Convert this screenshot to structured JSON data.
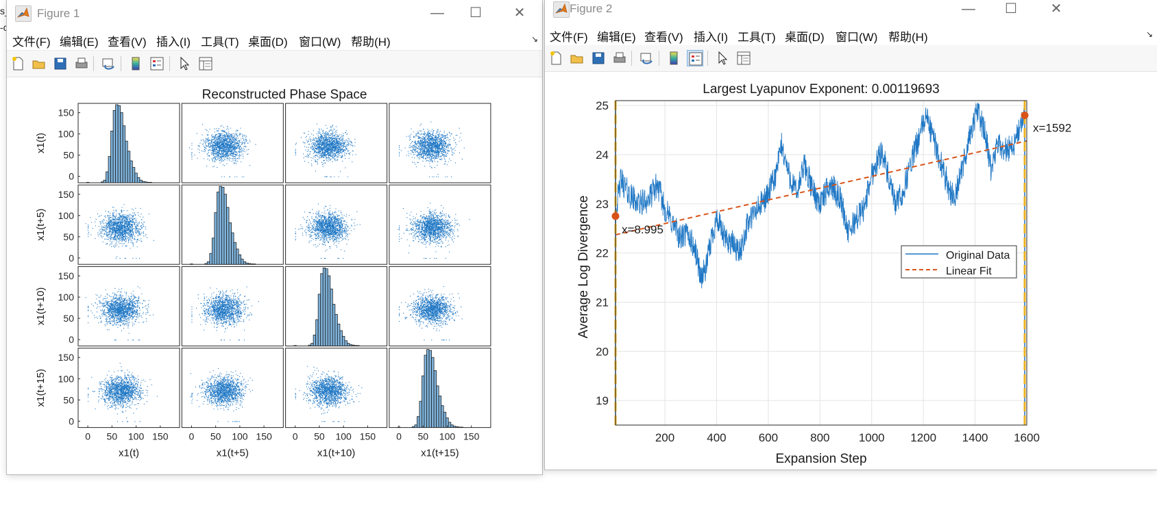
{
  "desktop": {
    "left_text_1": "s_",
    "left_text_2": "-c"
  },
  "figure1": {
    "title": "Figure 1",
    "menus": [
      "文件(F)",
      "编辑(E)",
      "查看(V)",
      "插入(I)",
      "工具(T)",
      "桌面(D)",
      "窗口(W)",
      "帮助(H)"
    ],
    "toolbar_icons": [
      "new-figure-icon",
      "open-file-icon",
      "save-icon",
      "print-icon",
      "link-plot-icon",
      "colorbar-icon",
      "legend-icon",
      "edit-plot-icon",
      "property-inspector-icon"
    ],
    "chart_data": {
      "type": "scatter-matrix",
      "title": "Reconstructed Phase Space",
      "variables": [
        "x1(t)",
        "x1(t+5)",
        "x1(t+10)",
        "x1(t+15)"
      ],
      "xlabels": [
        "x1(t)",
        "x1(t+5)",
        "x1(t+10)",
        "x1(t+15)"
      ],
      "ylabels": [
        "x1(t)",
        "x1(t+5)",
        "x1(t+10)",
        "x1(t+15)"
      ],
      "xticks": [
        "0",
        "50",
        "100",
        "150"
      ],
      "yticks": [
        "0",
        "50",
        "100",
        "150"
      ],
      "xlim": [
        -20,
        190
      ],
      "ylim": [
        -15,
        172
      ],
      "histogram": {
        "bin_centers": [
          0,
          25,
          30,
          35,
          40,
          45,
          50,
          55,
          60,
          65,
          70,
          75,
          80,
          85,
          90,
          95,
          100,
          105,
          110,
          115,
          120,
          125,
          130,
          140
        ],
        "counts": [
          1,
          0,
          2,
          6,
          25,
          60,
          118,
          165,
          178,
          176,
          160,
          130,
          95,
          72,
          50,
          35,
          22,
          12,
          6,
          3,
          2,
          1,
          1,
          0
        ]
      },
      "scatter": {
        "center": [
          68,
          72
        ],
        "spread": [
          20,
          17
        ],
        "n_points": 1400
      },
      "colors": {
        "bar_fill": "#7fb4dd",
        "bar_edge": "#1f1f1f",
        "points": "#1f77c4"
      }
    }
  },
  "figure2": {
    "title": "Figure 2",
    "menus": [
      "文件(F)",
      "编辑(E)",
      "查看(V)",
      "插入(I)",
      "工具(T)",
      "桌面(D)",
      "窗口(W)",
      "帮助(H)"
    ],
    "toolbar_icons": [
      "new-figure-icon",
      "open-file-icon",
      "save-icon",
      "print-icon",
      "link-plot-icon",
      "colorbar-icon",
      "legend-icon",
      "edit-plot-icon",
      "property-inspector-icon"
    ],
    "chart_data": {
      "type": "line",
      "title": "Largest Lyapunov Exponent: 0.00119693",
      "xlabel": "Expansion Step",
      "ylabel": "Average Log Divergence",
      "xlim": [
        9,
        1600
      ],
      "ylim": [
        18.5,
        25.1
      ],
      "xticks": [
        200,
        400,
        600,
        800,
        1000,
        1200,
        1400,
        1600
      ],
      "yticks": [
        19,
        20,
        21,
        22,
        23,
        24,
        25
      ],
      "grid": true,
      "legend_position": "right",
      "series": [
        {
          "name": "Original Data",
          "color": "#1f77c4",
          "x": [
            9,
            30,
            60,
            100,
            140,
            170,
            200,
            230,
            260,
            290,
            320,
            340,
            360,
            380,
            400,
            430,
            460,
            490,
            520,
            560,
            600,
            630,
            650,
            680,
            710,
            740,
            770,
            800,
            840,
            880,
            910,
            940,
            970,
            1000,
            1040,
            1070,
            1090,
            1120,
            1150,
            1180,
            1210,
            1240,
            1270,
            1300,
            1320,
            1350,
            1380,
            1410,
            1440,
            1460,
            1490,
            1520,
            1550,
            1570,
            1592
          ],
          "y": [
            22.8,
            23.5,
            23.2,
            23.0,
            23.1,
            23.4,
            22.9,
            22.6,
            22.3,
            22.4,
            22.0,
            21.5,
            21.7,
            22.3,
            22.7,
            22.3,
            22.2,
            22.0,
            22.6,
            22.9,
            23.2,
            23.6,
            24.2,
            23.6,
            23.2,
            23.8,
            23.3,
            23.0,
            23.4,
            23.1,
            22.4,
            22.7,
            22.9,
            23.6,
            24.1,
            23.4,
            23.0,
            23.2,
            23.8,
            24.3,
            24.8,
            24.3,
            23.8,
            23.3,
            23.1,
            23.7,
            24.4,
            24.9,
            24.4,
            23.7,
            24.2,
            24.1,
            24.2,
            24.5,
            24.8
          ]
        },
        {
          "name": "Linear Fit",
          "color": "#d95319",
          "x": [
            9,
            1600
          ],
          "y": [
            22.37,
            24.28
          ]
        }
      ],
      "vertical_lines_x": [
        9,
        1592
      ],
      "markers": [
        {
          "x": 9,
          "y": 22.75,
          "label": "x=8.995"
        },
        {
          "x": 1592,
          "y": 24.8,
          "label": "x=1592"
        }
      ]
    }
  }
}
